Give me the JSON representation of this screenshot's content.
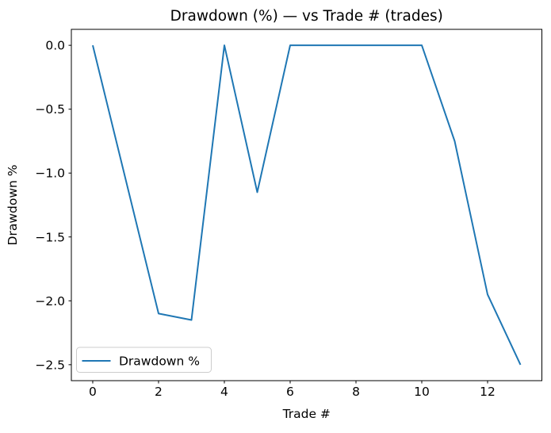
{
  "chart_data": {
    "type": "line",
    "title": "Drawdown (%) — vs Trade # (trades)",
    "xlabel": "Trade #",
    "ylabel": "Drawdown %",
    "x": [
      0,
      1,
      2,
      3,
      4,
      5,
      6,
      7,
      8,
      9,
      10,
      11,
      12,
      13
    ],
    "series": [
      {
        "name": "Drawdown %",
        "color": "#1f77b4",
        "values": [
          0.0,
          -1.05,
          -2.1,
          -2.15,
          0.0,
          -1.15,
          0.0,
          0.0,
          0.0,
          0.0,
          0.0,
          -0.75,
          -1.95,
          -2.5
        ]
      }
    ],
    "xlim": [
      -0.65,
      13.65
    ],
    "ylim": [
      -2.625,
      0.125
    ],
    "x_ticks": [
      0,
      2,
      4,
      6,
      8,
      10,
      12
    ],
    "x_tick_labels": [
      "0",
      "2",
      "4",
      "6",
      "8",
      "10",
      "12"
    ],
    "y_ticks": [
      0,
      -0.5,
      -1,
      -1.5,
      -2,
      -2.5
    ],
    "y_tick_labels": [
      "0.0",
      "−0.5",
      "−1.0",
      "−1.5",
      "−2.0",
      "−2.5"
    ],
    "grid": false,
    "legend": {
      "position": "lower left",
      "entries": [
        "Drawdown %"
      ]
    },
    "colors": {
      "line": "#1f77b4",
      "background": "#ffffff",
      "spine": "#000000",
      "legend_border": "#cccccc"
    }
  }
}
